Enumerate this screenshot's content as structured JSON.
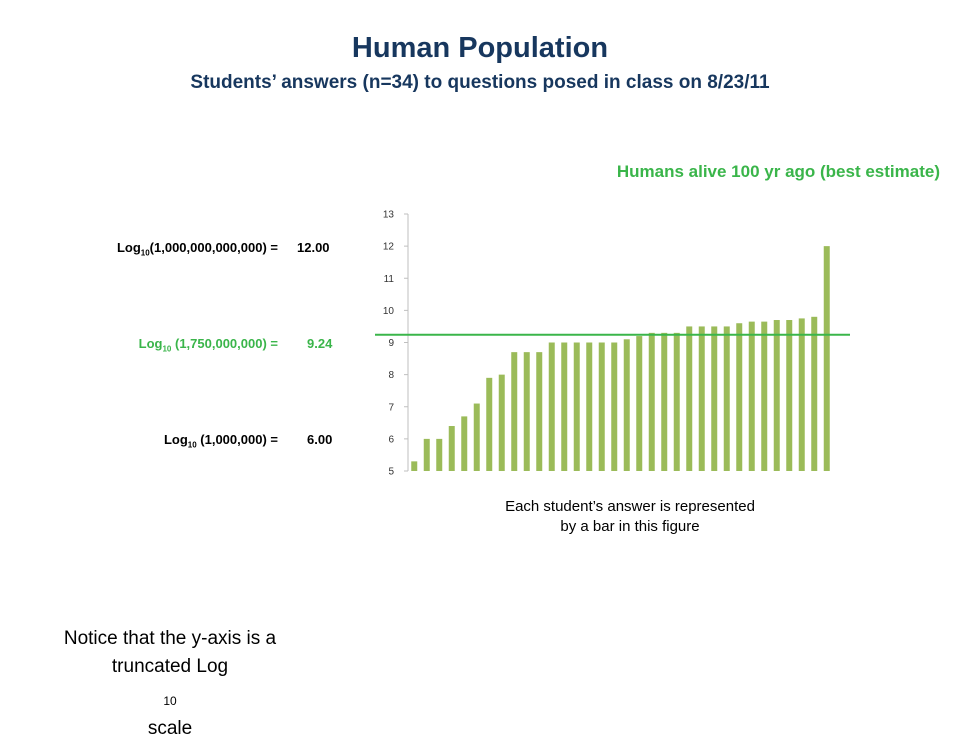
{
  "slide": {
    "title": "Human Population",
    "subtitle": "Students’ answers (n=34) to questions posed in class on 8/23/11"
  },
  "equations": [
    {
      "prefix": "Log",
      "base": "10",
      "argument": "(1,000,000,000,000)",
      "equals": "=",
      "value": "12.00",
      "color": "#000000"
    },
    {
      "prefix": "Log",
      "base": "10",
      "argument": " (1,750,000,000)",
      "equals": "=",
      "value": "9.24",
      "color": "#3ab54a"
    },
    {
      "prefix": "Log",
      "base": "10",
      "argument": " (1,000,000)",
      "equals": "=",
      "value": "6.00",
      "color": "#000000"
    }
  ],
  "caption": {
    "line1": "Each student’s answer is represented",
    "line2": "by a bar in this figure"
  },
  "note": {
    "line1": "Notice that the y-axis is a",
    "line2_prefix": "truncated Log",
    "line2_sub": "10",
    "line2_suffix": " scale"
  },
  "colors": {
    "title": "#17375e",
    "bar": "#9bbb59",
    "reference_line": "#3ab54a",
    "highlight": "#3ab54a"
  },
  "chart_data": {
    "type": "bar",
    "title": "Humans alive 100 yr ago (best estimate)",
    "xlabel": "",
    "ylabel": "",
    "ylim": [
      5,
      13
    ],
    "yticks": [
      5,
      6,
      7,
      8,
      9,
      10,
      11,
      12,
      13
    ],
    "log_scale_note": "truncated Log10 scale",
    "grid": false,
    "reference_line": {
      "value": 9.24
    },
    "values": [
      5.3,
      6.0,
      6.0,
      6.4,
      6.7,
      7.1,
      7.9,
      8.0,
      8.7,
      8.7,
      8.7,
      9.0,
      9.0,
      9.0,
      9.0,
      9.0,
      9.0,
      9.1,
      9.2,
      9.3,
      9.3,
      9.3,
      9.5,
      9.5,
      9.5,
      9.5,
      9.6,
      9.65,
      9.65,
      9.7,
      9.7,
      9.75,
      9.8,
      12.0
    ]
  }
}
